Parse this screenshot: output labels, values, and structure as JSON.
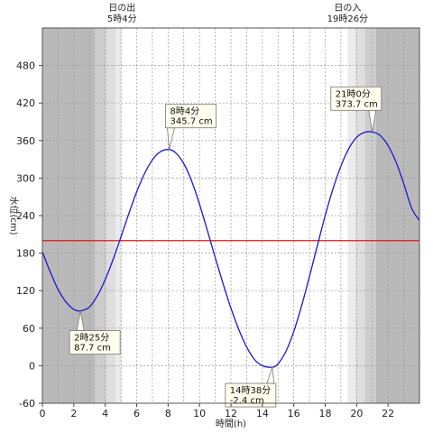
{
  "chart_data": {
    "type": "line",
    "xlabel": "時間(h)",
    "ylabel": "水位(cm)",
    "xlim": [
      0,
      24
    ],
    "ylim": [
      -60,
      540
    ],
    "xticks": [
      0,
      2,
      4,
      6,
      8,
      10,
      12,
      14,
      16,
      18,
      20,
      22
    ],
    "yticks": [
      -60,
      0,
      60,
      120,
      180,
      240,
      300,
      360,
      420,
      480
    ],
    "grid": true,
    "reference_line": {
      "value": 200,
      "color": "#e01818"
    },
    "series": [
      {
        "color": "#1a1acc",
        "x": [
          0,
          0.5,
          1,
          1.5,
          2,
          2.42,
          3,
          3.5,
          4,
          4.5,
          5,
          5.5,
          6,
          6.5,
          7,
          7.5,
          8.07,
          8.5,
          9,
          9.5,
          10,
          10.5,
          11,
          11.5,
          12,
          12.5,
          13,
          13.5,
          14,
          14.63,
          15,
          15.5,
          16,
          16.5,
          17,
          17.5,
          18,
          18.5,
          19,
          19.5,
          20,
          20.5,
          21,
          21.5,
          22,
          22.5,
          23,
          23.5,
          24
        ],
        "y": [
          182,
          150,
          122,
          102,
          90,
          87.7,
          94,
          112,
          138,
          170,
          206,
          243,
          278,
          307,
          329,
          342,
          345.7,
          340,
          323,
          295,
          258,
          216,
          173,
          131,
          92,
          58,
          30,
          10,
          0,
          -2.4,
          3,
          23,
          55,
          96,
          143,
          192,
          240,
          283,
          319,
          347,
          365,
          373,
          373.7,
          368,
          352,
          326,
          291,
          252,
          232
        ]
      }
    ],
    "callouts": [
      {
        "text": [
          "2時25分",
          "87.7 cm"
        ],
        "x": 2.42,
        "y": 87.7
      },
      {
        "text": [
          "8時4分",
          "345.7 cm"
        ],
        "x": 8.07,
        "y": 345.7
      },
      {
        "text": [
          "14時38分",
          "-2.4 cm"
        ],
        "x": 14.63,
        "y": -2.4
      },
      {
        "text": [
          "21時0分",
          "373.7 cm"
        ],
        "x": 21.0,
        "y": 373.7
      }
    ],
    "sun_events": [
      {
        "label": "日の出",
        "time": "5時4分",
        "hour": 5.07
      },
      {
        "label": "日の入",
        "time": "19時26分",
        "hour": 19.43
      }
    ],
    "shading": {
      "night": "#b9b9b9",
      "twilight": [
        "#cdcdcd",
        "#dedede",
        "#ececec"
      ],
      "day": "#ffffff"
    }
  }
}
